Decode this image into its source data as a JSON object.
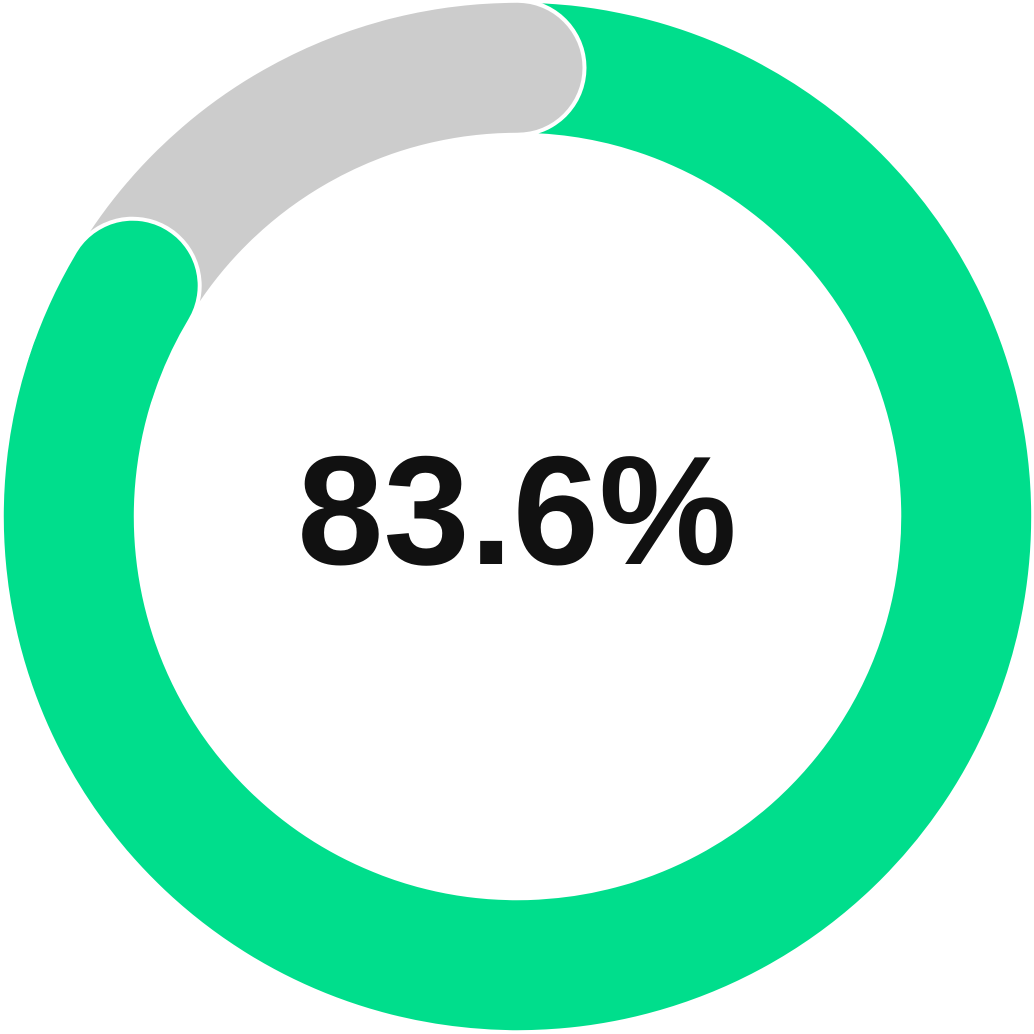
{
  "chart_data": {
    "type": "pie",
    "variant": "donut-progress",
    "title": "",
    "center_label": "83.6%",
    "categories": [
      "progress",
      "remainder"
    ],
    "values": [
      83.6,
      16.4
    ],
    "unit": "%",
    "start_angle_deg": 0,
    "direction": "clockwise",
    "cap_style": "round",
    "legend_position": "none",
    "colors": {
      "progress": "#00DE8C",
      "remainder": "#CCCCCC",
      "outline": "#FFFFFF",
      "label": "#111111",
      "background": "#FFFFFF"
    }
  }
}
